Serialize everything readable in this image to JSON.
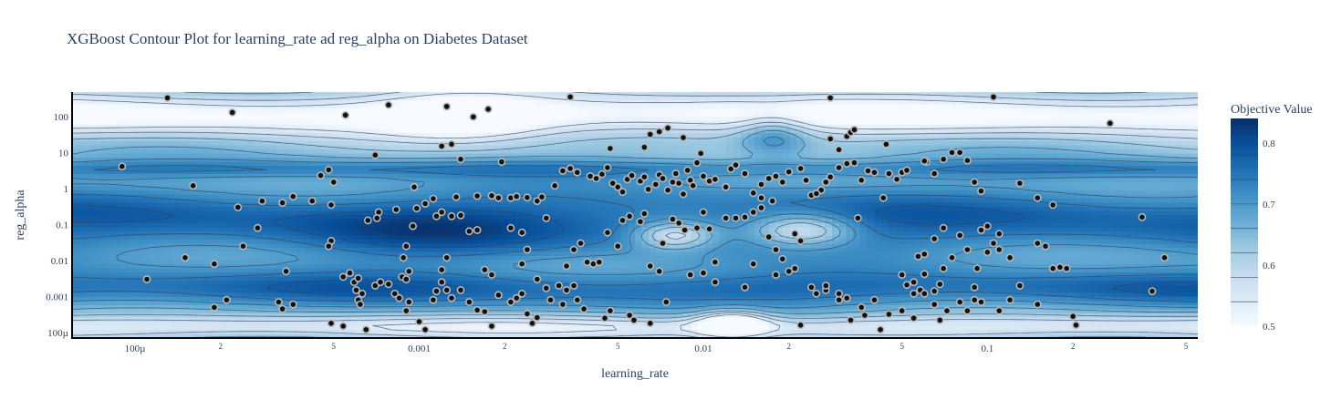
{
  "chart_data": {
    "type": "contour",
    "title": "XGBoost Contour Plot for learning_rate ad reg_alpha on Diabetes Dataset",
    "xlabel": "learning_rate",
    "ylabel": "reg_alpha",
    "x_scale": "log",
    "y_scale": "log",
    "xlim": [
      6e-05,
      0.55
    ],
    "ylim": [
      7e-05,
      480
    ],
    "x_ticks": [
      {
        "value": 0.0001,
        "label": "100µ",
        "major": true
      },
      {
        "value": 0.0002,
        "label": "2",
        "major": false
      },
      {
        "value": 0.0005,
        "label": "5",
        "major": false
      },
      {
        "value": 0.001,
        "label": "0.001",
        "major": true
      },
      {
        "value": 0.002,
        "label": "2",
        "major": false
      },
      {
        "value": 0.005,
        "label": "5",
        "major": false
      },
      {
        "value": 0.01,
        "label": "0.01",
        "major": true
      },
      {
        "value": 0.02,
        "label": "2",
        "major": false
      },
      {
        "value": 0.05,
        "label": "5",
        "major": false
      },
      {
        "value": 0.1,
        "label": "0.1",
        "major": true
      },
      {
        "value": 0.2,
        "label": "2",
        "major": false
      },
      {
        "value": 0.5,
        "label": "5",
        "major": false
      }
    ],
    "y_ticks": [
      {
        "value": 100,
        "label": "100"
      },
      {
        "value": 10,
        "label": "10"
      },
      {
        "value": 1,
        "label": "1"
      },
      {
        "value": 0.1,
        "label": "0.1"
      },
      {
        "value": 0.01,
        "label": "0.01"
      },
      {
        "value": 0.001,
        "label": "0.001"
      },
      {
        "value": 0.0001,
        "label": "100µ"
      }
    ],
    "colorbar": {
      "title": "Objective Value",
      "range": [
        0.5,
        0.84
      ],
      "ticks": [
        {
          "value": 0.5,
          "label": "0.5"
        },
        {
          "value": 0.6,
          "label": "0.6"
        },
        {
          "value": 0.7,
          "label": "0.7"
        },
        {
          "value": 0.8,
          "label": "0.8"
        }
      ],
      "colorscale": [
        "#f7fbff",
        "#deebf7",
        "#c6dbef",
        "#9ecae1",
        "#6baed6",
        "#4292c6",
        "#2171b5",
        "#08519c",
        "#08306b"
      ]
    },
    "contour_levels": [
      0.54,
      0.58,
      0.62,
      0.66,
      0.7,
      0.74,
      0.78,
      0.82
    ],
    "points": [
      [
        0.00013,
        330
      ],
      [
        0.00022,
        130
      ],
      [
        0.00055,
        110
      ],
      [
        0.00078,
        210
      ],
      [
        0.00125,
        190
      ],
      [
        0.00155,
        98
      ],
      [
        0.00175,
        160
      ],
      [
        0.0034,
        350
      ],
      [
        0.028,
        330
      ],
      [
        0.105,
        350
      ],
      [
        0.27,
        65
      ],
      [
        0.0007,
        8.5
      ],
      [
        0.0012,
        15
      ],
      [
        0.0013,
        17
      ],
      [
        0.0014,
        6.5
      ],
      [
        0.00195,
        5.5
      ],
      [
        0.0047,
        13
      ],
      [
        0.0062,
        14
      ],
      [
        0.0065,
        32
      ],
      [
        0.007,
        38
      ],
      [
        0.0075,
        48
      ],
      [
        0.0085,
        26
      ],
      [
        0.028,
        24
      ],
      [
        0.03,
        12
      ],
      [
        0.032,
        28
      ],
      [
        0.033,
        36
      ],
      [
        0.034,
        43
      ],
      [
        0.044,
        17
      ],
      [
        0.061,
        5.5
      ],
      [
        9e-05,
        4.1
      ],
      [
        0.00045,
        2.3
      ],
      [
        0.00048,
        3.3
      ],
      [
        0.0005,
        1.5
      ],
      [
        0.00016,
        1.2
      ],
      [
        0.00028,
        0.45
      ],
      [
        0.00036,
        0.6
      ],
      [
        0.00042,
        0.45
      ],
      [
        0.00049,
        0.35
      ],
      [
        0.00023,
        0.3
      ],
      [
        0.00033,
        0.4
      ],
      [
        0.00027,
        0.08
      ],
      [
        0.00049,
        0.035
      ],
      [
        0.00048,
        0.025
      ],
      [
        0.00024,
        0.025
      ],
      [
        0.00019,
        0.008
      ],
      [
        0.00015,
        0.012
      ],
      [
        0.00011,
        0.003
      ],
      [
        0.00034,
        0.005
      ],
      [
        0.00096,
        1.1
      ],
      [
        0.00112,
        0.52
      ],
      [
        0.00098,
        0.28
      ],
      [
        0.00083,
        0.26
      ],
      [
        0.00072,
        0.22
      ],
      [
        0.00071,
        0.15
      ],
      [
        0.00066,
        0.13
      ],
      [
        0.00095,
        0.09
      ],
      [
        0.00115,
        0.17
      ],
      [
        0.00105,
        0.38
      ],
      [
        0.0012,
        0.22
      ],
      [
        0.00135,
        0.58
      ],
      [
        0.0016,
        0.62
      ],
      [
        0.0018,
        0.63
      ],
      [
        0.0019,
        0.55
      ],
      [
        0.0021,
        0.55
      ],
      [
        0.0022,
        0.6
      ],
      [
        0.0024,
        0.56
      ],
      [
        0.0026,
        0.45
      ],
      [
        0.0027,
        0.58
      ],
      [
        0.0028,
        0.15
      ],
      [
        0.0023,
        0.06
      ],
      [
        0.0021,
        0.08
      ],
      [
        0.0016,
        0.07
      ],
      [
        0.0014,
        0.18
      ],
      [
        0.0015,
        0.065
      ],
      [
        0.0013,
        0.17
      ],
      [
        0.0009,
        0.025
      ],
      [
        0.00088,
        0.012
      ],
      [
        0.00092,
        0.005
      ],
      [
        0.0012,
        0.0055
      ],
      [
        0.00125,
        0.012
      ],
      [
        0.0017,
        0.0055
      ],
      [
        0.0018,
        0.004
      ],
      [
        0.0024,
        0.02
      ],
      [
        0.0023,
        0.008
      ],
      [
        0.0026,
        0.003
      ],
      [
        0.0028,
        0.0017
      ],
      [
        0.0031,
        0.002
      ],
      [
        0.0033,
        0.0015
      ],
      [
        0.0035,
        0.002
      ],
      [
        0.0029,
        0.0008
      ],
      [
        0.0032,
        0.0006
      ],
      [
        0.0036,
        0.0008
      ],
      [
        0.0038,
        0.00045
      ],
      [
        0.0045,
        0.00025
      ],
      [
        0.0047,
        0.0004
      ],
      [
        0.0055,
        0.0003
      ],
      [
        0.0057,
        0.00022
      ],
      [
        0.0065,
        0.00018
      ],
      [
        0.0074,
        0.0007
      ],
      [
        0.00054,
        0.0035
      ],
      [
        0.00057,
        0.0045
      ],
      [
        0.00059,
        0.0025
      ],
      [
        0.00061,
        0.0032
      ],
      [
        0.0006,
        0.0015
      ],
      [
        0.00063,
        0.0012
      ],
      [
        0.00061,
        0.0008
      ],
      [
        0.00062,
        0.0006
      ],
      [
        0.00054,
        0.00015
      ],
      [
        0.00065,
        0.00012
      ],
      [
        0.0007,
        0.002
      ],
      [
        0.00073,
        0.0025
      ],
      [
        0.00078,
        0.0022
      ],
      [
        0.00082,
        0.0012
      ],
      [
        0.00085,
        0.0009
      ],
      [
        0.00087,
        0.0035
      ],
      [
        0.0009,
        0.003
      ],
      [
        0.00092,
        0.0007
      ],
      [
        0.0009,
        0.0004
      ],
      [
        0.001,
        0.0002
      ],
      [
        0.00105,
        0.00012
      ],
      [
        0.00112,
        0.0008
      ],
      [
        0.00115,
        0.0014
      ],
      [
        0.0012,
        0.0025
      ],
      [
        0.00125,
        0.0015
      ],
      [
        0.0013,
        0.0009
      ],
      [
        0.0014,
        0.0015
      ],
      [
        0.0015,
        0.0007
      ],
      [
        0.0016,
        0.00042
      ],
      [
        0.0017,
        0.00038
      ],
      [
        0.0018,
        0.00015
      ],
      [
        0.0019,
        0.0011
      ],
      [
        0.0021,
        0.0007
      ],
      [
        0.0022,
        0.0009
      ],
      [
        0.0023,
        0.0012
      ],
      [
        0.0024,
        0.00033
      ],
      [
        0.0025,
        0.00018
      ],
      [
        0.0026,
        0.00026
      ],
      [
        0.00049,
        0.00018
      ],
      [
        0.00036,
        0.0006
      ],
      [
        0.00033,
        0.00045
      ],
      [
        0.00032,
        0.0007
      ],
      [
        0.00021,
        0.0008
      ],
      [
        0.00019,
        0.0005
      ],
      [
        0.0033,
        0.007
      ],
      [
        0.0035,
        0.02
      ],
      [
        0.0037,
        0.03
      ],
      [
        0.0039,
        0.009
      ],
      [
        0.0041,
        0.008
      ],
      [
        0.0043,
        0.009
      ],
      [
        0.0046,
        0.06
      ],
      [
        0.005,
        0.025
      ],
      [
        0.0052,
        0.13
      ],
      [
        0.0055,
        0.17
      ],
      [
        0.006,
        0.12
      ],
      [
        0.0062,
        0.2
      ],
      [
        0.0065,
        0.007
      ],
      [
        0.007,
        0.005
      ],
      [
        0.0072,
        0.03
      ],
      [
        0.0078,
        0.14
      ],
      [
        0.0082,
        0.11
      ],
      [
        0.0086,
        0.07
      ],
      [
        0.009,
        0.004
      ],
      [
        0.0095,
        0.08
      ],
      [
        0.01,
        0.22
      ],
      [
        0.0105,
        0.075
      ],
      [
        0.011,
        0.009
      ],
      [
        0.012,
        0.15
      ],
      [
        0.013,
        0.15
      ],
      [
        0.014,
        0.16
      ],
      [
        0.015,
        0.22
      ],
      [
        0.016,
        0.29
      ],
      [
        0.017,
        0.045
      ],
      [
        0.018,
        0.02
      ],
      [
        0.019,
        0.011
      ],
      [
        0.021,
        0.055
      ],
      [
        0.022,
        0.035
      ],
      [
        0.0175,
        0.45
      ],
      [
        0.016,
        0.55
      ],
      [
        0.015,
        0.008
      ],
      [
        0.014,
        0.0018
      ],
      [
        0.011,
        0.0025
      ],
      [
        0.01,
        0.0045
      ],
      [
        0.003,
        1.2
      ],
      [
        0.0032,
        3.1
      ],
      [
        0.0034,
        3.6
      ],
      [
        0.0036,
        2.8
      ],
      [
        0.004,
        2.2
      ],
      [
        0.0042,
        1.9
      ],
      [
        0.0044,
        2.5
      ],
      [
        0.0046,
        3.8
      ],
      [
        0.0048,
        1.4
      ],
      [
        0.005,
        1.1
      ],
      [
        0.0052,
        0.8
      ],
      [
        0.0054,
        1.8
      ],
      [
        0.0056,
        2.3
      ],
      [
        0.006,
        1.6
      ],
      [
        0.0062,
        2.1
      ],
      [
        0.0064,
        0.95
      ],
      [
        0.0068,
        1.3
      ],
      [
        0.007,
        2.4
      ],
      [
        0.0072,
        1.9
      ],
      [
        0.0075,
        0.9
      ],
      [
        0.0078,
        1.5
      ],
      [
        0.008,
        2.6
      ],
      [
        0.0082,
        1.4
      ],
      [
        0.0085,
        0.7
      ],
      [
        0.0088,
        3.2
      ],
      [
        0.009,
        1.7
      ],
      [
        0.0092,
        1.2
      ],
      [
        0.0095,
        5.2
      ],
      [
        0.0098,
        9.5
      ],
      [
        0.01,
        2.2
      ],
      [
        0.0105,
        1.6
      ],
      [
        0.011,
        1.8
      ],
      [
        0.012,
        1.1
      ],
      [
        0.0125,
        3.5
      ],
      [
        0.013,
        4.5
      ],
      [
        0.014,
        2.6
      ],
      [
        0.015,
        0.75
      ],
      [
        0.016,
        1.3
      ],
      [
        0.017,
        1.9
      ],
      [
        0.018,
        2.2
      ],
      [
        0.019,
        1.5
      ],
      [
        0.02,
        2.9
      ],
      [
        0.022,
        3.6
      ],
      [
        0.023,
        1.7
      ],
      [
        0.024,
        0.65
      ],
      [
        0.026,
        0.9
      ],
      [
        0.027,
        1.5
      ],
      [
        0.028,
        2.1
      ],
      [
        0.03,
        3.8
      ],
      [
        0.032,
        4.9
      ],
      [
        0.034,
        5.2
      ],
      [
        0.036,
        1.7
      ],
      [
        0.038,
        3.1
      ],
      [
        0.04,
        2.8
      ],
      [
        0.045,
        2.6
      ],
      [
        0.048,
        1.8
      ],
      [
        0.05,
        2.8
      ],
      [
        0.052,
        3.2
      ],
      [
        0.06,
        5.8
      ],
      [
        0.065,
        2.6
      ],
      [
        0.07,
        6.5
      ],
      [
        0.075,
        10
      ],
      [
        0.08,
        10
      ],
      [
        0.085,
        6
      ],
      [
        0.09,
        1.5
      ],
      [
        0.095,
        0.85
      ],
      [
        0.13,
        1.4
      ],
      [
        0.15,
        0.55
      ],
      [
        0.025,
        0.72
      ],
      [
        0.043,
        0.55
      ],
      [
        0.035,
        0.15
      ],
      [
        0.021,
        0.006
      ],
      [
        0.024,
        0.0018
      ],
      [
        0.027,
        0.0015
      ],
      [
        0.03,
        0.0012
      ],
      [
        0.032,
        0.0009
      ],
      [
        0.036,
        0.0005
      ],
      [
        0.04,
        0.0008
      ],
      [
        0.045,
        0.00032
      ],
      [
        0.05,
        0.0004
      ],
      [
        0.055,
        0.00025
      ],
      [
        0.058,
        0.0015
      ],
      [
        0.06,
        0.0012
      ],
      [
        0.065,
        0.0006
      ],
      [
        0.068,
        0.00022
      ],
      [
        0.072,
        0.0004
      ],
      [
        0.08,
        0.0007
      ],
      [
        0.085,
        0.0004
      ],
      [
        0.09,
        0.0008
      ],
      [
        0.095,
        0.0007
      ],
      [
        0.11,
        0.0004
      ],
      [
        0.12,
        0.0008
      ],
      [
        0.13,
        0.002
      ],
      [
        0.15,
        0.0006
      ],
      [
        0.17,
        0.006
      ],
      [
        0.19,
        0.006
      ],
      [
        0.2,
        0.00028
      ],
      [
        0.205,
        0.00016
      ],
      [
        0.38,
        0.0014
      ],
      [
        0.018,
        0.004
      ],
      [
        0.02,
        0.005
      ],
      [
        0.022,
        0.00016
      ],
      [
        0.025,
        0.0012
      ],
      [
        0.027,
        0.002
      ],
      [
        0.03,
        0.0008
      ],
      [
        0.033,
        0.00022
      ],
      [
        0.037,
        0.0003
      ],
      [
        0.042,
        0.00012
      ],
      [
        0.05,
        0.004
      ],
      [
        0.052,
        0.0021
      ],
      [
        0.055,
        0.0012
      ],
      [
        0.06,
        0.0042
      ],
      [
        0.065,
        0.0014
      ],
      [
        0.068,
        0.0022
      ],
      [
        0.07,
        0.006
      ],
      [
        0.075,
        0.012
      ],
      [
        0.08,
        0.05
      ],
      [
        0.085,
        0.02
      ],
      [
        0.09,
        0.0018
      ],
      [
        0.092,
        0.006
      ],
      [
        0.1,
        0.017
      ],
      [
        0.11,
        0.02
      ],
      [
        0.12,
        0.012
      ],
      [
        0.095,
        0.07
      ],
      [
        0.1,
        0.09
      ],
      [
        0.105,
        0.03
      ],
      [
        0.11,
        0.055
      ],
      [
        0.07,
        0.08
      ],
      [
        0.065,
        0.04
      ],
      [
        0.06,
        0.015
      ],
      [
        0.057,
        0.013
      ],
      [
        0.055,
        0.0025
      ],
      [
        0.15,
        0.03
      ],
      [
        0.16,
        0.025
      ],
      [
        0.17,
        0.35
      ],
      [
        0.18,
        0.0065
      ],
      [
        0.35,
        0.16
      ],
      [
        0.42,
        0.012
      ]
    ]
  }
}
